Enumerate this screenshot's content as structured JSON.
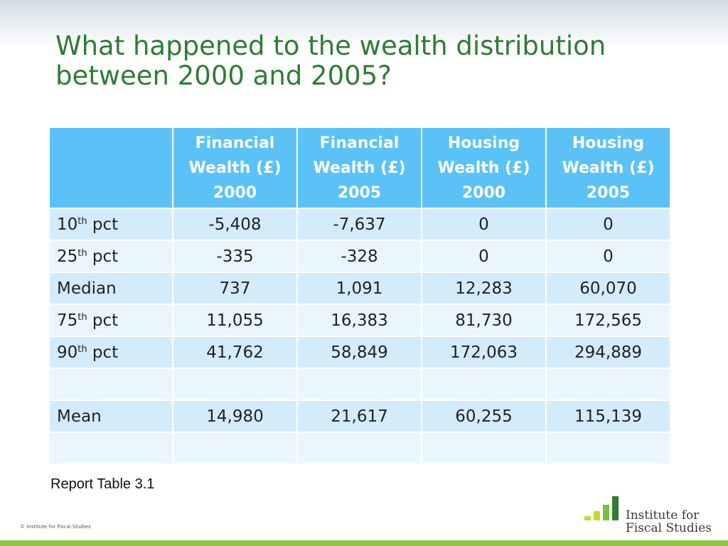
{
  "slide": {
    "title_line1": "What happened to the wealth distribution",
    "title_line2": "between 2000 and 2005?"
  },
  "table": {
    "columns": [
      {
        "line1": "Financial",
        "line2": "Wealth (£)",
        "line3": "2000"
      },
      {
        "line1": "Financial",
        "line2": "Wealth (£)",
        "line3": "2005"
      },
      {
        "line1": "Housing",
        "line2": "Wealth (£)",
        "line3": "2000"
      },
      {
        "line1": "Housing",
        "line2": "Wealth (£)",
        "line3": "2005"
      }
    ],
    "rows": [
      {
        "label_main": "10",
        "label_sup": "th",
        "label_rest": " pct",
        "values": [
          "-5,408",
          "-7,637",
          "0",
          "0"
        ]
      },
      {
        "label_main": "25",
        "label_sup": "th",
        "label_rest": " pct",
        "values": [
          "-335",
          "-328",
          "0",
          "0"
        ]
      },
      {
        "label_main": "Median",
        "label_sup": "",
        "label_rest": "",
        "values": [
          "737",
          "1,091",
          "12,283",
          "60,070"
        ]
      },
      {
        "label_main": "75",
        "label_sup": "th",
        "label_rest": " pct",
        "values": [
          "11,055",
          "16,383",
          "81,730",
          "172,565"
        ]
      },
      {
        "label_main": "90",
        "label_sup": "th",
        "label_rest": " pct",
        "values": [
          "41,762",
          "58,849",
          "172,063",
          "294,889"
        ]
      },
      {
        "label_main": "",
        "label_sup": "",
        "label_rest": "",
        "values": [
          "",
          "",
          "",
          ""
        ]
      },
      {
        "label_main": "Mean",
        "label_sup": "",
        "label_rest": "",
        "values": [
          "14,980",
          "21,617",
          "60,255",
          "115,139"
        ]
      },
      {
        "label_main": "",
        "label_sup": "",
        "label_rest": "",
        "values": [
          "",
          "",
          "",
          ""
        ]
      }
    ]
  },
  "caption": "Report Table 3.1",
  "footer": {
    "copyright": "© Institute for Fiscal Studies",
    "logo_line1": "Institute for",
    "logo_line2": "Fiscal Studies",
    "logo_icon": "bar-chart-logo-icon"
  },
  "colors": {
    "title": "#2e7d32",
    "header_bg": "#5bc2f7",
    "row_odd": "#d3ecfb",
    "row_even": "#eaf6fe",
    "accent_green": "#8dc63f",
    "logo_dark_green": "#2e7d32"
  }
}
